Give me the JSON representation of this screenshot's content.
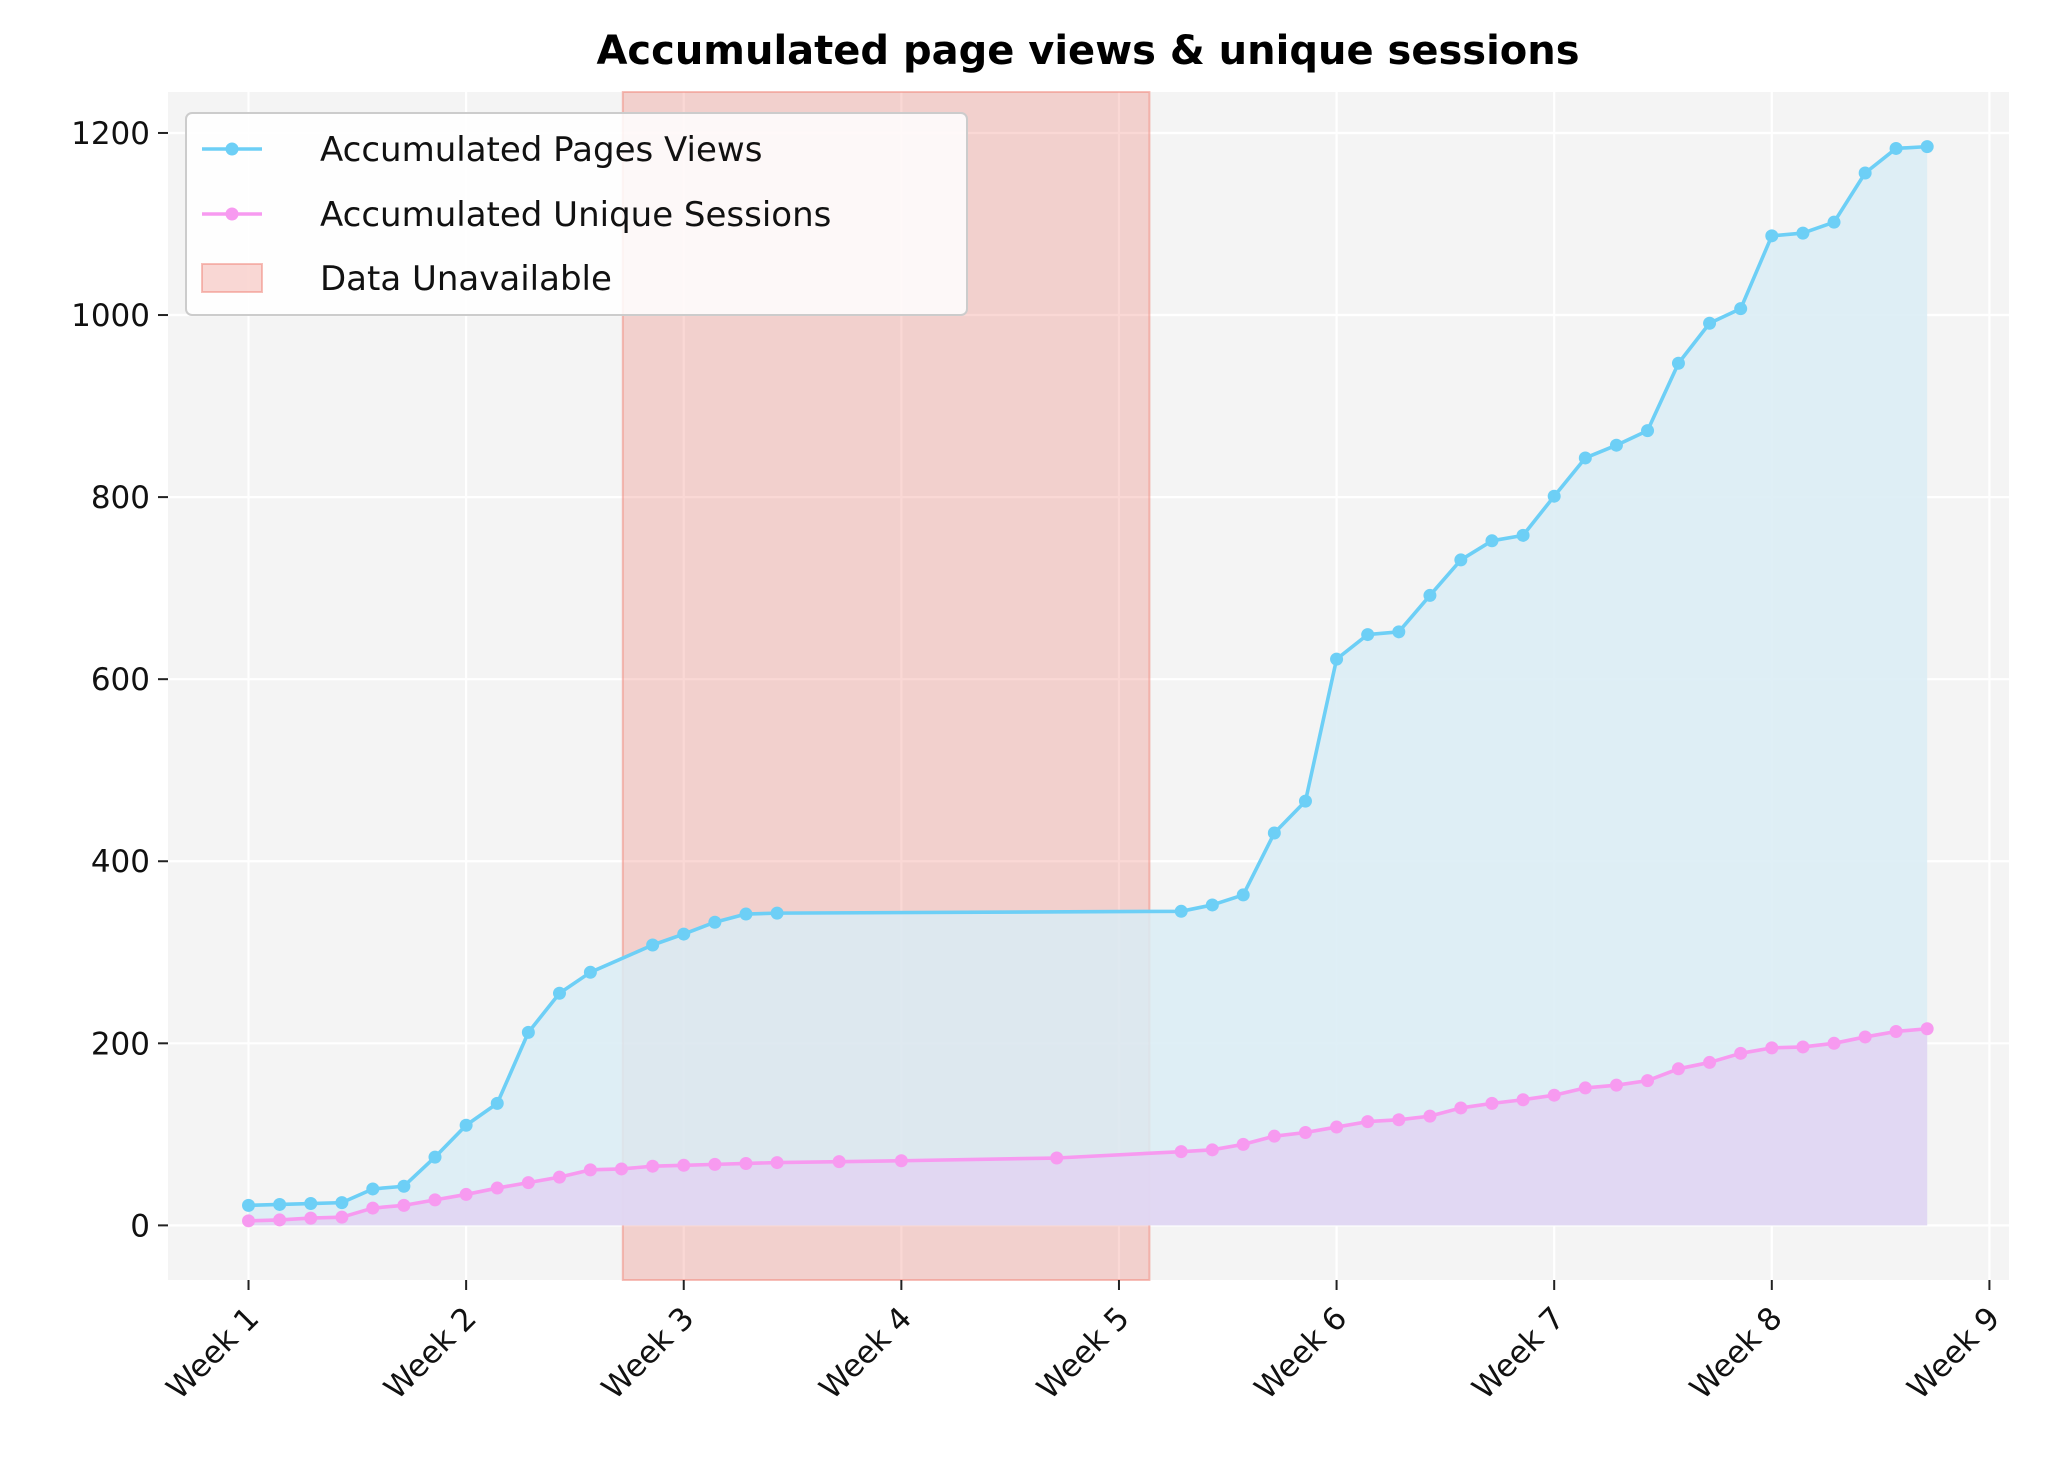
{
  "chart_data": {
    "type": "line",
    "title": "Accumulated page views & unique sessions",
    "xlabel": "",
    "ylabel": "",
    "x_ticks": [
      "Week 1",
      "Week 2",
      "Week 3",
      "Week 4",
      "Week 5",
      "Week 6",
      "Week 7",
      "Week 8",
      "Week 9"
    ],
    "y_ticks": [
      0,
      200,
      400,
      600,
      800,
      1000,
      1200
    ],
    "xlim": [
      0.63,
      9.09
    ],
    "ylim": [
      -60,
      1245
    ],
    "grid": true,
    "legend_position": "top-left",
    "shaded_region": {
      "label": "Data Unavailable",
      "x_start": 2.72,
      "x_end": 5.14,
      "color": "#f08a80"
    },
    "series": [
      {
        "name": "Accumulated Pages Views",
        "color": "#6dcff6",
        "fill": "#d9ecf4",
        "x": [
          1,
          1.143,
          1.286,
          1.429,
          1.571,
          1.714,
          1.857,
          2,
          2.143,
          2.286,
          2.429,
          2.571,
          2.857,
          3,
          3.143,
          3.286,
          3.429,
          5.286,
          5.429,
          5.571,
          5.714,
          5.857,
          6,
          6.143,
          6.286,
          6.429,
          6.571,
          6.714,
          6.857,
          7,
          7.143,
          7.286,
          7.429,
          7.571,
          7.714,
          7.857,
          8,
          8.143,
          8.286,
          8.429,
          8.571,
          8.714
        ],
        "values": [
          22,
          23,
          24,
          25,
          40,
          43,
          75,
          110,
          134,
          212,
          255,
          278,
          308,
          320,
          333,
          342,
          343,
          345,
          352,
          363,
          431,
          466,
          622,
          649,
          652,
          692,
          731,
          752,
          758,
          801,
          843,
          857,
          873,
          947,
          991,
          1007,
          1087,
          1090,
          1102,
          1156,
          1183,
          1185
        ]
      },
      {
        "name": "Accumulated Unique Sessions",
        "color": "#f79af0",
        "fill": "#e2d3f2",
        "x": [
          1,
          1.143,
          1.286,
          1.429,
          1.571,
          1.714,
          1.857,
          2,
          2.143,
          2.286,
          2.429,
          2.571,
          2.714,
          2.857,
          3,
          3.143,
          3.286,
          3.429,
          3.714,
          4,
          4.714,
          5.286,
          5.429,
          5.571,
          5.714,
          5.857,
          6,
          6.143,
          6.286,
          6.429,
          6.571,
          6.714,
          6.857,
          7,
          7.143,
          7.286,
          7.429,
          7.571,
          7.714,
          7.857,
          8,
          8.143,
          8.286,
          8.429,
          8.571,
          8.714
        ],
        "values": [
          5,
          6,
          8,
          9,
          19,
          22,
          28,
          34,
          41,
          47,
          53,
          61,
          62,
          65,
          66,
          67,
          68,
          69,
          70,
          71,
          74,
          81,
          83,
          89,
          98,
          102,
          108,
          114,
          116,
          120,
          129,
          134,
          138,
          143,
          151,
          154,
          159,
          172,
          179,
          189,
          195,
          196,
          200,
          207,
          213,
          216
        ]
      }
    ]
  }
}
